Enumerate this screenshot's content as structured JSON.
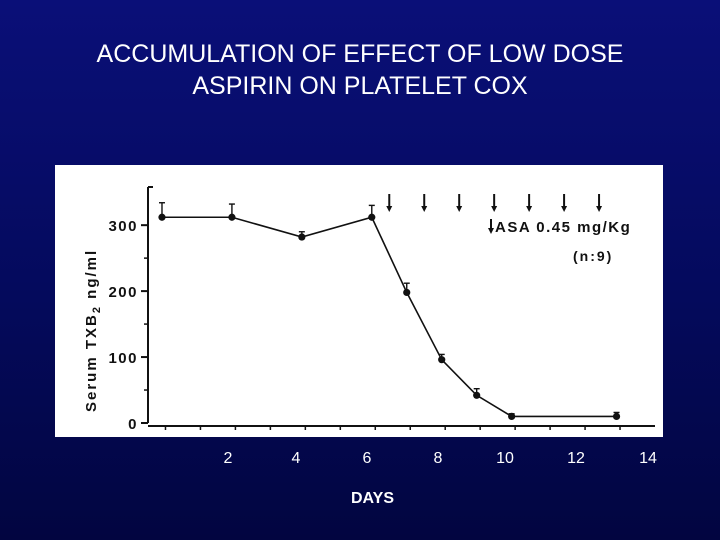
{
  "slide": {
    "title_line1": "ACCUMULATION OF EFFECT OF LOW DOSE",
    "title_line2": "ASPIRIN ON PLATELET COX"
  },
  "chart_data": {
    "type": "line",
    "title": "ACCUMULATION OF EFFECT OF LOW DOSE ASPIRIN ON PLATELET COX",
    "xlabel": "DAYS",
    "ylabel_parts": [
      "Serum TXB",
      "2",
      " ng/ml"
    ],
    "x_ticks": [
      "2",
      "4",
      "6",
      "8",
      "10",
      "12",
      "14"
    ],
    "y_ticks": [
      "0",
      "100",
      "200",
      "300"
    ],
    "xlim": [
      0,
      14.5
    ],
    "ylim": [
      0,
      370
    ],
    "grid": false,
    "annotation_line1": "ASA 0.45 mg/Kg",
    "annotation_line2": "(n:9)",
    "dose_days": [
      6.9,
      7.9,
      8.9,
      9.9,
      10.9,
      11.9,
      12.9
    ],
    "series": [
      {
        "name": "Serum TXB2",
        "x": [
          0.4,
          2.4,
          4.4,
          6.4,
          7.4,
          8.4,
          9.4,
          10.4,
          13.4
        ],
        "y": [
          312,
          312,
          282,
          312,
          198,
          96,
          42,
          10,
          10
        ],
        "error": [
          22,
          20,
          8,
          18,
          14,
          8,
          10,
          4,
          6
        ]
      }
    ]
  }
}
